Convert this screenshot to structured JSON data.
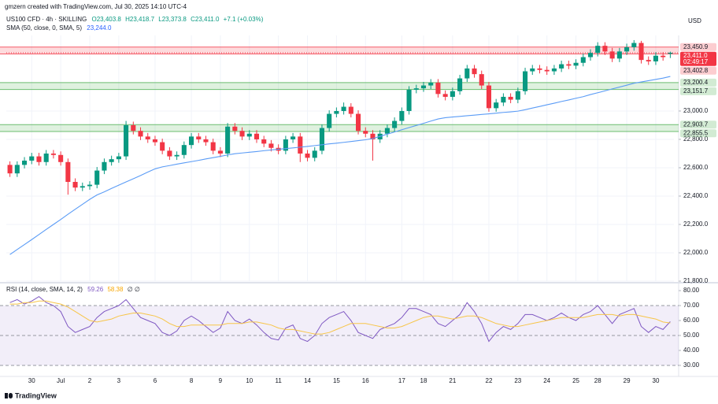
{
  "header": {
    "attribution": "gmzern created with TradingView.com, Jul 30, 2025 14:10 UTC-4",
    "symbol": "US100 CFD · 4h · SKILLING",
    "ohlc": [
      "O23,403.8",
      "H23,418.7",
      "L23,373.8",
      "C23,411.0",
      "+7.1 (+0.03%)"
    ],
    "sma_legend": "SMA (50, close, 0, SMA, 5)",
    "sma_value": "23,244.0",
    "rsi_legend": "RSI (14, close, SMA, 14, 2)",
    "rsi_values": [
      "59.26",
      "58.38"
    ],
    "rsi_extra": "∅ ∅",
    "currency": "USD"
  },
  "footer": "TradingView",
  "chart_data": [
    {
      "type": "candlestick",
      "open": [
        22620,
        22560,
        22620,
        22650,
        22680,
        22640,
        22700,
        22690,
        22640,
        22500,
        22460,
        22470,
        22480,
        22580,
        22640,
        22660,
        22680,
        22900,
        22860,
        22820,
        22800,
        22780,
        22720,
        22680,
        22690,
        22760,
        22820,
        22800,
        22780,
        22720,
        22700,
        22890,
        22860,
        22820,
        22840,
        22800,
        22770,
        22740,
        22720,
        22800,
        22820,
        22700,
        22670,
        22720,
        22880,
        22980,
        23000,
        23030,
        22980,
        22860,
        22840,
        22800,
        22840,
        22880,
        22930,
        23000,
        23150,
        23160,
        23180,
        23200,
        23120,
        23100,
        23140,
        23230,
        23300,
        23260,
        23180,
        23020,
        23060,
        23100,
        23080,
        23140,
        23280,
        23300,
        23290,
        23280,
        23300,
        23330,
        23320,
        23340,
        23380,
        23410,
        23460,
        23420,
        23370,
        23420,
        23450,
        23480,
        23360,
        23350,
        23390,
        23403.8
      ],
      "high": [
        22645,
        22645,
        22675,
        22705,
        22705,
        22725,
        22725,
        22715,
        22665,
        22525,
        22495,
        22505,
        22605,
        22665,
        22685,
        22705,
        22930,
        22925,
        22885,
        22845,
        22825,
        22805,
        22745,
        22715,
        22785,
        22845,
        22845,
        22825,
        22805,
        22745,
        22915,
        22915,
        22885,
        22865,
        22865,
        22825,
        22795,
        22765,
        22825,
        22845,
        22845,
        22725,
        22745,
        22905,
        23005,
        23025,
        23060,
        23055,
        23005,
        22885,
        22865,
        22865,
        22905,
        22955,
        23025,
        23175,
        23185,
        23205,
        23225,
        23225,
        23145,
        23165,
        23255,
        23325,
        23325,
        23285,
        23205,
        23085,
        23125,
        23125,
        23165,
        23305,
        23325,
        23325,
        23315,
        23325,
        23355,
        23355,
        23365,
        23405,
        23435,
        23485,
        23485,
        23445,
        23445,
        23475,
        23500,
        23495,
        23385,
        23415,
        23415,
        23418.7
      ],
      "low": [
        22535,
        22535,
        22595,
        22625,
        22615,
        22615,
        22665,
        22615,
        22410,
        22435,
        22435,
        22445,
        22455,
        22555,
        22615,
        22635,
        22655,
        22835,
        22795,
        22775,
        22755,
        22695,
        22655,
        22655,
        22665,
        22735,
        22775,
        22755,
        22695,
        22675,
        22675,
        22835,
        22795,
        22795,
        22775,
        22745,
        22715,
        22695,
        22695,
        22775,
        22640,
        22645,
        22645,
        22695,
        22855,
        22955,
        22975,
        22955,
        22835,
        22815,
        22650,
        22775,
        22815,
        22855,
        22905,
        22975,
        23125,
        23135,
        23155,
        23095,
        23075,
        23075,
        23115,
        23205,
        23235,
        23155,
        22995,
        22995,
        23035,
        23055,
        23055,
        23115,
        23255,
        23265,
        23255,
        23255,
        23275,
        23295,
        23295,
        23315,
        23355,
        23385,
        23395,
        23345,
        23345,
        23395,
        23425,
        23335,
        23325,
        23325,
        23355,
        23373.8
      ],
      "close": [
        22560,
        22620,
        22650,
        22680,
        22640,
        22700,
        22690,
        22640,
        22500,
        22460,
        22470,
        22480,
        22580,
        22640,
        22660,
        22680,
        22900,
        22860,
        22820,
        22800,
        22780,
        22720,
        22680,
        22690,
        22760,
        22820,
        22800,
        22780,
        22720,
        22700,
        22890,
        22860,
        22820,
        22840,
        22800,
        22770,
        22740,
        22720,
        22800,
        22820,
        22700,
        22670,
        22720,
        22880,
        22980,
        23000,
        23030,
        22980,
        22860,
        22840,
        22800,
        22840,
        22880,
        22930,
        23000,
        23150,
        23160,
        23180,
        23200,
        23120,
        23100,
        23140,
        23230,
        23300,
        23260,
        23180,
        23020,
        23060,
        23100,
        23080,
        23140,
        23280,
        23300,
        23290,
        23280,
        23300,
        23330,
        23320,
        23340,
        23380,
        23410,
        23460,
        23420,
        23370,
        23420,
        23450,
        23480,
        23360,
        23350,
        23390,
        23380,
        23411.0
      ],
      "up_color": "#089981",
      "down_color": "#f23645",
      "sma": {
        "color": "#5b9cf6",
        "values": [
          21988,
          22023,
          22058,
          22093,
          22129,
          22165,
          22200,
          22235,
          22272,
          22307,
          22342,
          22377,
          22408,
          22430,
          22454,
          22477,
          22500,
          22522,
          22545,
          22569,
          22592,
          22606,
          22615,
          22625,
          22634,
          22643,
          22652,
          22662,
          22671,
          22680,
          22690,
          22699,
          22704,
          22709,
          22714,
          22720,
          22725,
          22730,
          22735,
          22740,
          22745,
          22750,
          22756,
          22762,
          22768,
          22773,
          22779,
          22785,
          22791,
          22797,
          22806,
          22821,
          22837,
          22852,
          22868,
          22883,
          22898,
          22913,
          22929,
          22944,
          22953,
          22958,
          22962,
          22967,
          22971,
          22976,
          22980,
          22985,
          22990,
          22994,
          22999,
          23009,
          23021,
          23032,
          23044,
          23055,
          23067,
          23078,
          23090,
          23101,
          23116,
          23129,
          23142,
          23156,
          23169,
          23182,
          23196,
          23205,
          23214,
          23223,
          23232,
          23244.0
        ]
      },
      "zones": [
        {
          "top": {
            "value": 23450.9,
            "label": "23,450.9"
          },
          "bottom": {
            "value": 23402.8,
            "label": "23,402.8"
          },
          "color": "#f23645"
        },
        {
          "top": {
            "value": 23200.4,
            "label": "23,200.4"
          },
          "bottom": {
            "value": 23151.7,
            "label": "23,151.7"
          },
          "color": "#4caf50"
        },
        {
          "top": {
            "value": 22903.7,
            "label": "22,903.7"
          },
          "bottom": {
            "value": 22855.5,
            "label": "22,855.5"
          },
          "color": "#4caf50"
        }
      ],
      "last_price": {
        "value": 23411.0,
        "label": "23,411.0",
        "countdown": "02:49:17",
        "color": "#f23645"
      },
      "xlim": [
        0,
        92
      ],
      "xticks": [
        {
          "value": 3,
          "label": "30"
        },
        {
          "value": 7,
          "label": "Jul"
        },
        {
          "value": 11,
          "label": "2"
        },
        {
          "value": 15,
          "label": "3"
        },
        {
          "value": 20,
          "label": "6"
        },
        {
          "value": 25,
          "label": "8"
        },
        {
          "value": 29,
          "label": "9"
        },
        {
          "value": 33,
          "label": "10"
        },
        {
          "value": 37,
          "label": "11"
        },
        {
          "value": 41,
          "label": "14"
        },
        {
          "value": 45,
          "label": "15"
        },
        {
          "value": 49,
          "label": "16"
        },
        {
          "value": 54,
          "label": "17"
        },
        {
          "value": 57,
          "label": "18"
        },
        {
          "value": 61,
          "label": "21"
        },
        {
          "value": 66,
          "label": "22"
        },
        {
          "value": 70,
          "label": "23"
        },
        {
          "value": 74,
          "label": "24"
        },
        {
          "value": 78,
          "label": "25"
        },
        {
          "value": 81,
          "label": "28"
        },
        {
          "value": 85,
          "label": "29"
        },
        {
          "value": 89,
          "label": "30"
        }
      ],
      "ylim": [
        21800,
        23533
      ],
      "yticks": [
        {
          "value": 21800,
          "label": "21,800.0"
        },
        {
          "value": 22000,
          "label": "22,000.0"
        },
        {
          "value": 22200,
          "label": "22,200.0"
        },
        {
          "value": 22400,
          "label": "22,400.0"
        },
        {
          "value": 22600,
          "label": "22,600.0"
        },
        {
          "value": 22800,
          "label": "22,800.0"
        },
        {
          "value": 23000,
          "label": "23,000.0"
        }
      ],
      "grid": true
    },
    {
      "type": "line",
      "series": [
        {
          "color": "#7e57c2",
          "values": [
            72,
            74,
            71,
            73,
            76,
            72,
            70,
            66,
            56,
            52,
            54,
            56,
            62,
            66,
            68,
            70,
            74,
            68,
            62,
            60,
            58,
            52,
            50,
            53,
            60,
            63,
            60,
            56,
            52,
            55,
            66,
            60,
            58,
            61,
            57,
            52,
            48,
            47,
            55,
            57,
            48,
            46,
            50,
            58,
            62,
            64,
            66,
            60,
            52,
            50,
            48,
            54,
            56,
            58,
            62,
            68,
            68,
            66,
            64,
            58,
            56,
            60,
            64,
            72,
            66,
            58,
            46,
            52,
            56,
            54,
            58,
            64,
            64,
            62,
            60,
            62,
            65,
            62,
            60,
            64,
            66,
            70,
            64,
            58,
            64,
            66,
            68,
            56,
            52,
            56,
            54,
            59.26
          ]
        },
        {
          "color": "#f7c548",
          "values": [
            71,
            71,
            72,
            72,
            73,
            73,
            72,
            71,
            69,
            66,
            63,
            60,
            59,
            60,
            61,
            63,
            64,
            65,
            65,
            64,
            63,
            61,
            58,
            56,
            56,
            57,
            57,
            57,
            57,
            57,
            58,
            58,
            58,
            59,
            59,
            58,
            57,
            55,
            54,
            54,
            53,
            52,
            51,
            51,
            52,
            54,
            56,
            58,
            58,
            58,
            57,
            56,
            55,
            55,
            56,
            58,
            60,
            62,
            63,
            63,
            62,
            61,
            62,
            63,
            63,
            62,
            60,
            58,
            57,
            56,
            56,
            57,
            58,
            59,
            60,
            61,
            62,
            62,
            62,
            62,
            63,
            64,
            64,
            64,
            63,
            64,
            64,
            63,
            62,
            61,
            59,
            58.38
          ]
        }
      ],
      "xlim": [
        0,
        92
      ],
      "ylim": [
        22.6,
        83.7
      ],
      "yticks": [
        {
          "value": 30,
          "label": "30.00"
        },
        {
          "value": 40,
          "label": "40.00"
        },
        {
          "value": 50,
          "label": "50.00"
        },
        {
          "value": 60,
          "label": "60.00"
        },
        {
          "value": 70,
          "label": "70.00"
        },
        {
          "value": 80,
          "label": "80.00"
        }
      ],
      "bands": [
        70,
        50,
        30
      ],
      "band_color": "#7e57c2"
    }
  ]
}
